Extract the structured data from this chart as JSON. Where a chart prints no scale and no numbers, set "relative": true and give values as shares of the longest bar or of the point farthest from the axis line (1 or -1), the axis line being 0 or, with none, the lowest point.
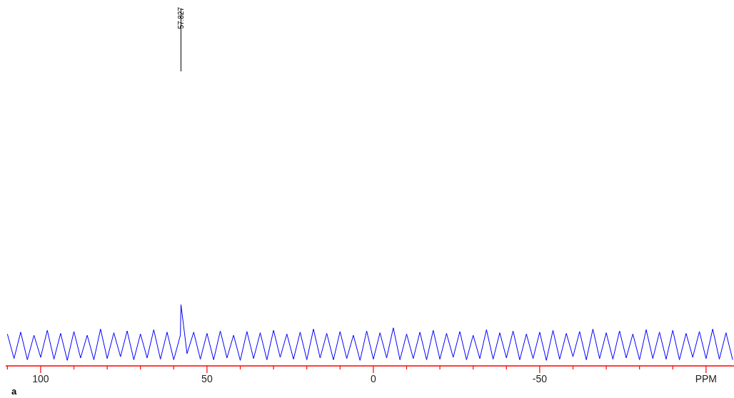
{
  "chart_data": {
    "type": "line",
    "relative": true,
    "x": [
      110,
      108,
      106,
      104,
      102,
      100,
      98,
      96,
      94,
      92,
      90,
      88,
      86,
      84,
      82,
      80,
      78,
      76,
      74,
      72,
      70,
      68,
      66,
      64,
      62,
      60,
      58,
      57.827,
      56,
      54,
      52,
      50,
      48,
      46,
      44,
      42,
      40,
      38,
      36,
      34,
      32,
      30,
      28,
      26,
      24,
      22,
      20,
      18,
      16,
      14,
      12,
      10,
      8,
      6,
      4,
      2,
      0,
      -2,
      -4,
      -6,
      -8,
      -10,
      -12,
      -14,
      -16,
      -18,
      -20,
      -22,
      -24,
      -26,
      -28,
      -30,
      -32,
      -34,
      -36,
      -38,
      -40,
      -42,
      -44,
      -46,
      -48,
      -50,
      -52,
      -54,
      -56,
      -58,
      -60,
      -62,
      -64,
      -66,
      -68,
      -70,
      -72,
      -74,
      -76,
      -78,
      -80,
      -82,
      -84,
      -86,
      -88,
      -90,
      -92,
      -94,
      -96,
      -98,
      -100,
      -102,
      -104,
      -106,
      -108
    ],
    "series": [
      {
        "color": "#0000ff",
        "values": [
          0.52,
          0.12,
          0.55,
          0.1,
          0.5,
          0.14,
          0.58,
          0.11,
          0.53,
          0.09,
          0.56,
          0.13,
          0.5,
          0.1,
          0.6,
          0.12,
          0.54,
          0.15,
          0.57,
          0.1,
          0.52,
          0.13,
          0.59,
          0.11,
          0.55,
          0.1,
          0.5,
          1.0,
          0.2,
          0.55,
          0.11,
          0.53,
          0.1,
          0.57,
          0.13,
          0.5,
          0.09,
          0.56,
          0.12,
          0.54,
          0.1,
          0.58,
          0.14,
          0.52,
          0.11,
          0.55,
          0.1,
          0.6,
          0.13,
          0.53,
          0.1,
          0.56,
          0.12,
          0.5,
          0.09,
          0.57,
          0.11,
          0.54,
          0.13,
          0.62,
          0.1,
          0.52,
          0.12,
          0.55,
          0.1,
          0.58,
          0.11,
          0.53,
          0.14,
          0.56,
          0.1,
          0.5,
          0.12,
          0.59,
          0.11,
          0.54,
          0.13,
          0.57,
          0.1,
          0.52,
          0.12,
          0.55,
          0.09,
          0.58,
          0.11,
          0.53,
          0.15,
          0.56,
          0.1,
          0.6,
          0.12,
          0.54,
          0.11,
          0.57,
          0.13,
          0.52,
          0.1,
          0.59,
          0.12,
          0.55,
          0.11,
          0.58,
          0.1,
          0.53,
          0.14,
          0.56,
          0.12,
          0.6,
          0.11,
          0.54,
          0.1
        ]
      }
    ],
    "xlim": [
      110.5,
      -108.4
    ],
    "xticks": [
      {
        "value": 110,
        "label": null
      },
      100,
      {
        "value": 90,
        "label": null
      },
      {
        "value": 80,
        "label": null
      },
      {
        "value": 70,
        "label": null
      },
      {
        "value": 60,
        "label": null
      },
      50,
      {
        "value": 40,
        "label": null
      },
      {
        "value": 30,
        "label": null
      },
      {
        "value": 20,
        "label": null
      },
      {
        "value": 10,
        "label": null
      },
      0,
      {
        "value": -10,
        "label": null
      },
      {
        "value": -20,
        "label": null
      },
      {
        "value": -30,
        "label": null
      },
      {
        "value": -40,
        "label": null
      },
      -50,
      {
        "value": -60,
        "label": null
      },
      {
        "value": -70,
        "label": null
      },
      {
        "value": -80,
        "label": null
      },
      {
        "value": -90,
        "label": null
      },
      {
        "value": -100,
        "label": "PPM"
      }
    ],
    "annotations": [
      {
        "text": "57.827",
        "x": 57.827
      },
      "a"
    ],
    "grid": false
  }
}
